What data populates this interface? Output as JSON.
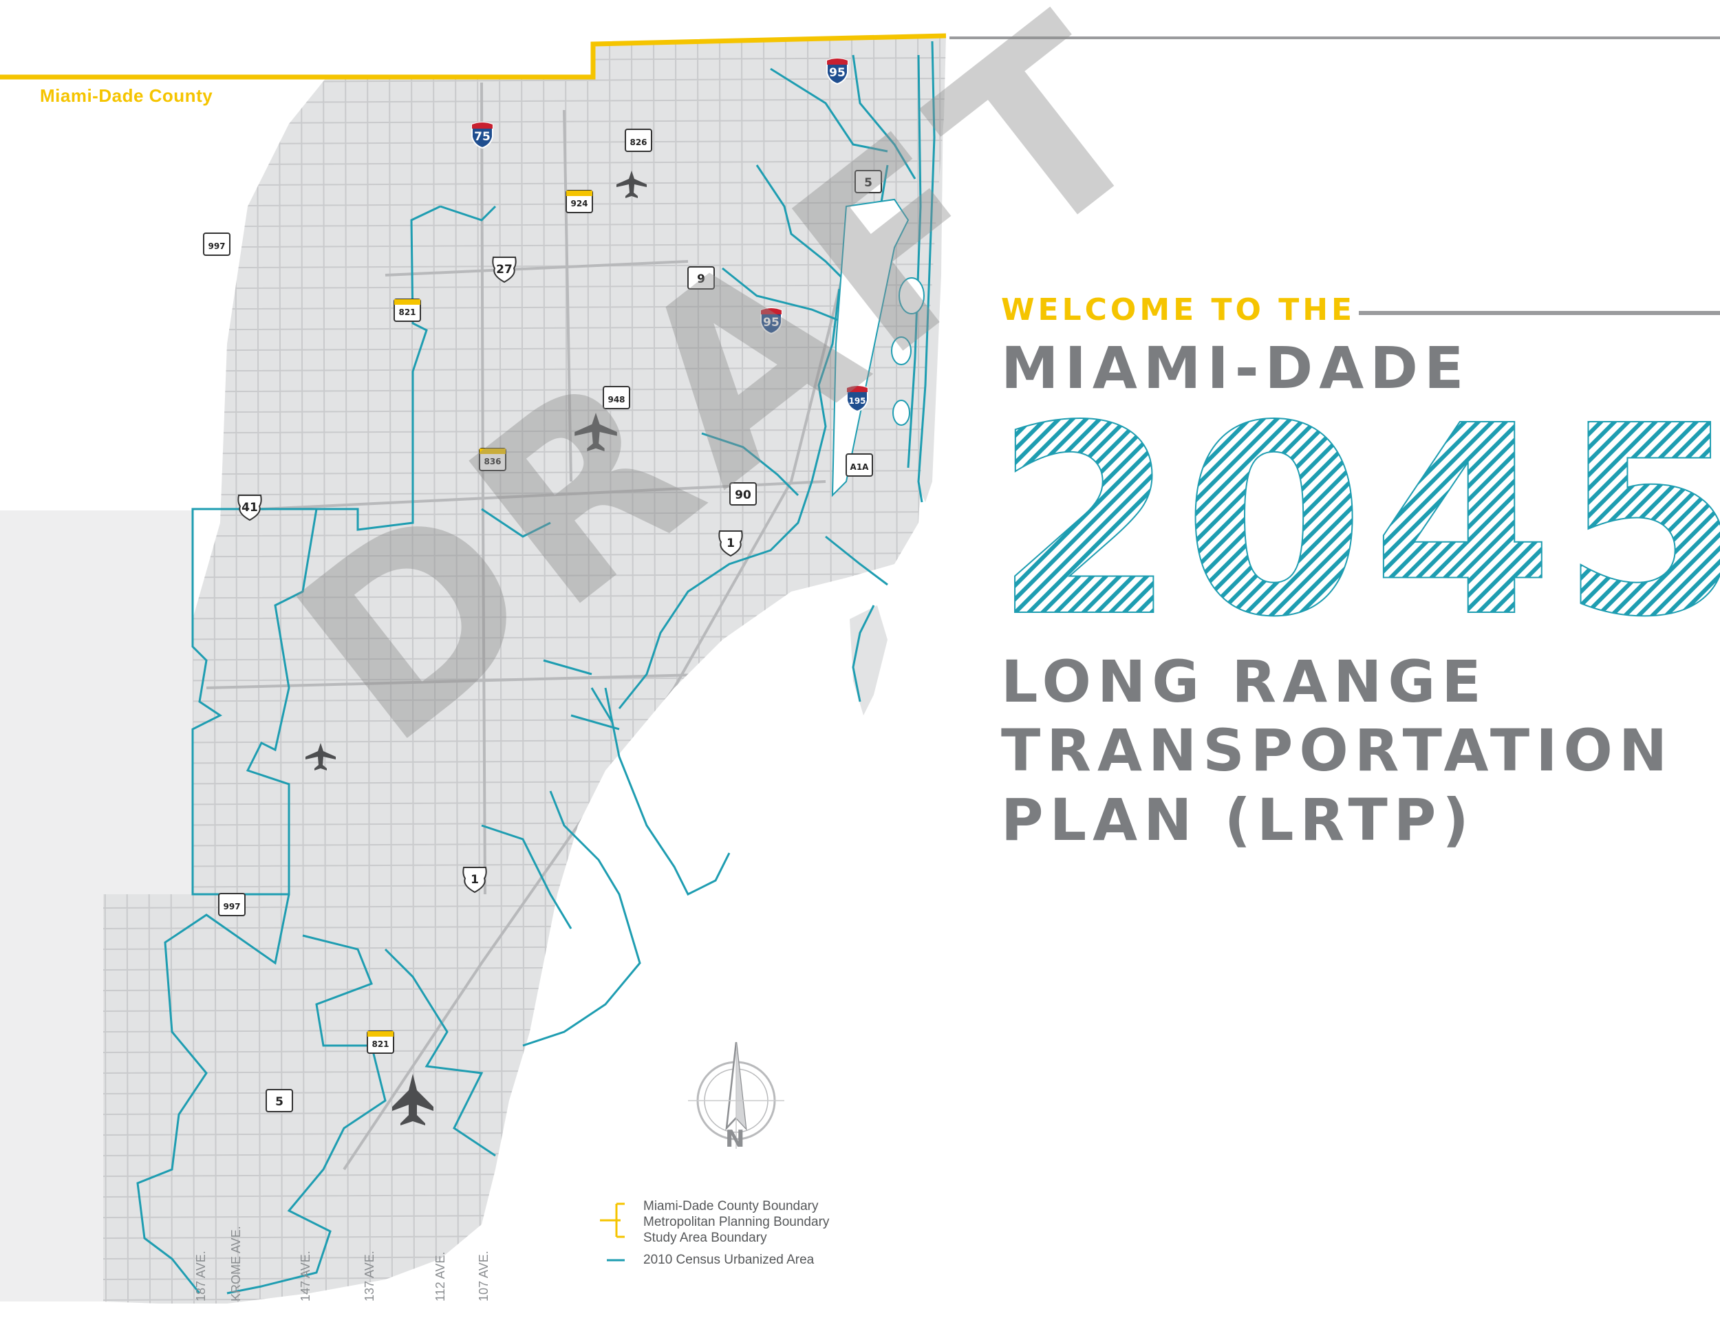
{
  "map": {
    "county_label": "Miami-Dade County",
    "colors": {
      "land": "#e2e3e4",
      "road": "#c9cacc",
      "county_boundary": "#f5c400",
      "urbanized_area": "#1e9db1",
      "text_gray": "#7b7d80",
      "accent_yellow": "#f5c400",
      "accent_teal": "#1e9db1"
    },
    "shields": [
      {
        "type": "interstate",
        "label": "95"
      },
      {
        "type": "interstate",
        "label": "75"
      },
      {
        "type": "state",
        "label": "826"
      },
      {
        "type": "state",
        "label": "5"
      },
      {
        "type": "toll",
        "label": "924"
      },
      {
        "type": "state",
        "label": "997"
      },
      {
        "type": "us",
        "label": "27"
      },
      {
        "type": "state",
        "label": "9"
      },
      {
        "type": "toll",
        "label": "821"
      },
      {
        "type": "interstate",
        "label": "95"
      },
      {
        "type": "state",
        "label": "948"
      },
      {
        "type": "interstate",
        "label": "195"
      },
      {
        "type": "toll",
        "label": "836"
      },
      {
        "type": "state",
        "label": "A1A"
      },
      {
        "type": "us",
        "label": "41"
      },
      {
        "type": "state",
        "label": "90"
      },
      {
        "type": "us",
        "label": "1"
      },
      {
        "type": "us",
        "label": "1"
      },
      {
        "type": "state",
        "label": "997"
      },
      {
        "type": "toll",
        "label": "821"
      },
      {
        "type": "state",
        "label": "5"
      }
    ],
    "airport_icons": [
      "airplane-icon",
      "airplane-icon",
      "airplane-icon",
      "military-jet-icon"
    ],
    "avenues": [
      "187 AVE.",
      "KROME AVE.",
      "147 AVE.",
      "137 AVE.",
      "112 AVE.",
      "107 AVE."
    ],
    "compass": {
      "letter": "N"
    }
  },
  "title": {
    "welcome": "WELCOME TO THE",
    "region": "MIAMI-DADE",
    "year": "2045",
    "plan_lines": [
      "LONG RANGE",
      "TRANSPORTATION",
      "PLAN (LRTP)"
    ]
  },
  "legend": {
    "items": [
      "Miami-Dade County Boundary",
      "Metropolitan Planning Boundary",
      "Study Area Boundary",
      "2010 Census Urbanized Area"
    ]
  },
  "watermark": "DRAFT"
}
